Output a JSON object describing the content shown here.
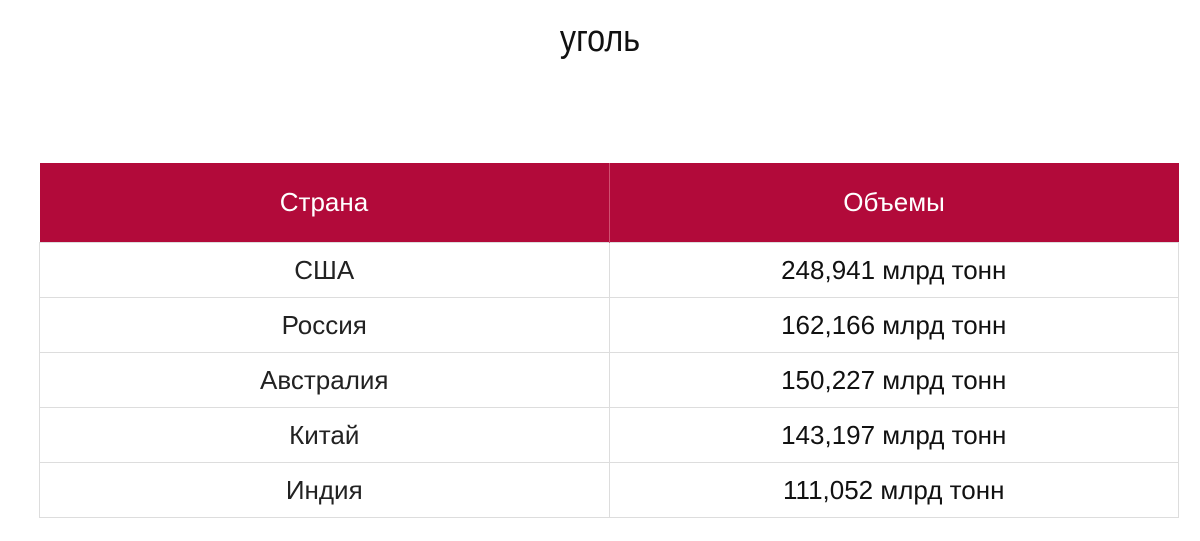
{
  "title": "уголь",
  "table": {
    "header": [
      "Страна",
      "Объемы"
    ],
    "rows": [
      [
        "США",
        "248,941 млрд тонн"
      ],
      [
        "Россия",
        "162,166 млрд тонн"
      ],
      [
        "Австралия",
        "150,227 млрд тонн"
      ],
      [
        "Китай",
        "143,197 млрд тонн"
      ],
      [
        "Индия",
        "111,052 млрд тонн"
      ]
    ]
  }
}
